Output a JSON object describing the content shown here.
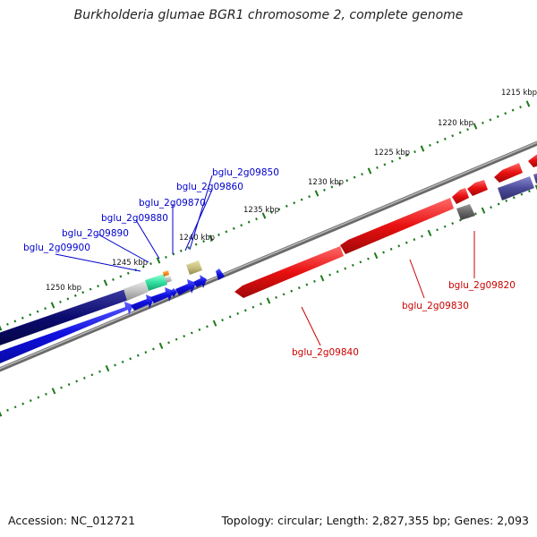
{
  "title": "Burkholderia glumae BGR1 chromosome 2, complete genome",
  "footer": {
    "accession": "Accession: NC_012721",
    "summary": "Topology: circular; Length: 2,827,355 bp; Genes: 2,093"
  },
  "scale_labels": [
    "1215 kbp",
    "1220 kbp",
    "1225 kbp",
    "1230 kbp",
    "1235 kbp",
    "1240 kbp",
    "1245 kbp",
    "1250 kbp"
  ],
  "forward_gene_labels": [
    "bglu_2g09850",
    "bglu_2g09860",
    "bglu_2g09870",
    "bglu_2g09880",
    "bglu_2g09890",
    "bglu_2g09900"
  ],
  "reverse_gene_labels": [
    "bglu_2g09820",
    "bglu_2g09830",
    "bglu_2g09840"
  ],
  "colors": {
    "forward_label": "#0000cc",
    "reverse_label": "#cc0000",
    "tick": "#1a7a1a",
    "backbone": "#888888",
    "forward_gene": "#1010e0",
    "reverse_gene": "#e81010",
    "navy_gene": "#0a0a6e",
    "slate_gene": "#4a4a9a",
    "gray_gene": "#c0c0c0",
    "dark_gray_gene": "#666666",
    "teal_gene": "#30e0a0",
    "khaki_gene": "#c8c080",
    "orange_gene": "#ff8c1a"
  }
}
